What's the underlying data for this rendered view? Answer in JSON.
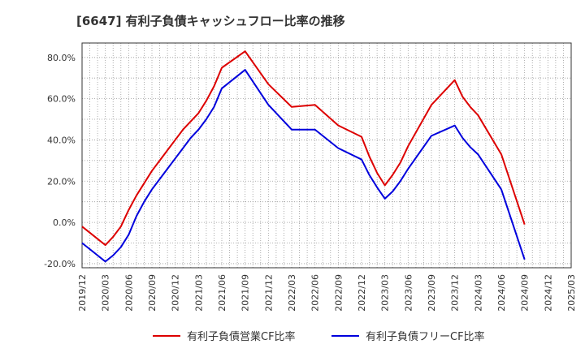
{
  "chart_data": {
    "type": "line",
    "title": "[6647]  有利子負債キャッシュフロー比率の推移",
    "xlabel": "",
    "ylabel": "",
    "ylim": [
      -22,
      87
    ],
    "y_ticks": [
      "80.0%",
      "60.0%",
      "40.0%",
      "20.0%",
      "0.0%",
      "-20.0%"
    ],
    "y_tick_values": [
      80,
      60,
      40,
      20,
      0,
      -20
    ],
    "x_ticks": [
      "2019/12",
      "2020/03",
      "2020/06",
      "2020/09",
      "2020/12",
      "2021/03",
      "2021/06",
      "2021/09",
      "2021/12",
      "2022/03",
      "2022/06",
      "2022/09",
      "2022/12",
      "2023/03",
      "2023/06",
      "2023/09",
      "2023/12",
      "2024/03",
      "2024/06",
      "2024/09",
      "2024/12",
      "2025/03"
    ],
    "grid": true,
    "legend_position": "bottom",
    "series": [
      {
        "name": "有利子負債営業CF比率",
        "color": "#dd0000",
        "points": [
          [
            "2019/12",
            -2
          ],
          [
            "2020/01",
            -5
          ],
          [
            "2020/02",
            -8
          ],
          [
            "2020/03",
            -11
          ],
          [
            "2020/04",
            -7
          ],
          [
            "2020/05",
            -2
          ],
          [
            "2020/06",
            6
          ],
          [
            "2020/07",
            13
          ],
          [
            "2020/08",
            19
          ],
          [
            "2020/09",
            25
          ],
          [
            "2020/10",
            30
          ],
          [
            "2020/11",
            35
          ],
          [
            "2020/12",
            40
          ],
          [
            "2021/01",
            45
          ],
          [
            "2021/02",
            49
          ],
          [
            "2021/03",
            53
          ],
          [
            "2021/04",
            59
          ],
          [
            "2021/05",
            66
          ],
          [
            "2021/06",
            75
          ],
          [
            "2021/09",
            83
          ],
          [
            "2021/12",
            67
          ],
          [
            "2022/03",
            56
          ],
          [
            "2022/06",
            57
          ],
          [
            "2022/09",
            47
          ],
          [
            "2022/12",
            41.5
          ],
          [
            "2023/01",
            32
          ],
          [
            "2023/02",
            24
          ],
          [
            "2023/03",
            18
          ],
          [
            "2023/04",
            23
          ],
          [
            "2023/05",
            29
          ],
          [
            "2023/06",
            37
          ],
          [
            "2023/09",
            57
          ],
          [
            "2023/12",
            69
          ],
          [
            "2024/01",
            61
          ],
          [
            "2024/02",
            56
          ],
          [
            "2024/03",
            52
          ],
          [
            "2024/06",
            33
          ],
          [
            "2024/09",
            -1
          ]
        ]
      },
      {
        "name": "有利子負債フリーCF比率",
        "color": "#0000dd",
        "points": [
          [
            "2019/12",
            -10
          ],
          [
            "2020/01",
            -13
          ],
          [
            "2020/02",
            -16
          ],
          [
            "2020/03",
            -19
          ],
          [
            "2020/04",
            -16
          ],
          [
            "2020/05",
            -12
          ],
          [
            "2020/06",
            -6
          ],
          [
            "2020/07",
            3
          ],
          [
            "2020/08",
            10
          ],
          [
            "2020/09",
            16
          ],
          [
            "2020/10",
            21
          ],
          [
            "2020/11",
            26
          ],
          [
            "2020/12",
            31
          ],
          [
            "2021/01",
            36
          ],
          [
            "2021/02",
            41
          ],
          [
            "2021/03",
            45
          ],
          [
            "2021/04",
            50
          ],
          [
            "2021/05",
            56
          ],
          [
            "2021/06",
            65
          ],
          [
            "2021/09",
            74
          ],
          [
            "2021/12",
            57
          ],
          [
            "2022/03",
            45
          ],
          [
            "2022/06",
            45
          ],
          [
            "2022/09",
            36
          ],
          [
            "2022/12",
            30.5
          ],
          [
            "2023/01",
            23
          ],
          [
            "2023/02",
            17
          ],
          [
            "2023/03",
            11.5
          ],
          [
            "2023/04",
            15
          ],
          [
            "2023/05",
            20
          ],
          [
            "2023/06",
            26
          ],
          [
            "2023/09",
            42
          ],
          [
            "2023/12",
            47
          ],
          [
            "2024/01",
            41
          ],
          [
            "2024/02",
            36.5
          ],
          [
            "2024/03",
            33
          ],
          [
            "2024/06",
            16
          ],
          [
            "2024/09",
            -18
          ]
        ]
      }
    ]
  }
}
